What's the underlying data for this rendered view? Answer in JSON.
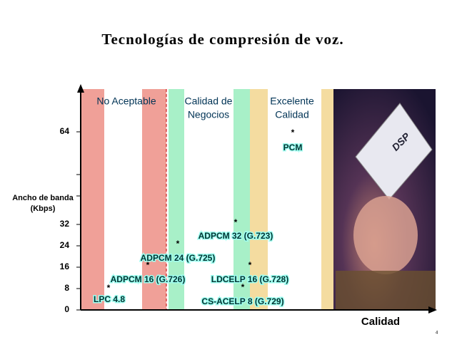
{
  "title": "Tecnologías  de compresión de voz.",
  "y_axis": {
    "label_lines": [
      "Ancho de banda",
      "(Kbps)"
    ],
    "ticks": [
      "64",
      "32",
      "24",
      "16",
      "8",
      "0"
    ]
  },
  "x_axis_label": "Calidad",
  "zones": [
    {
      "lines": [
        "No Aceptable"
      ]
    },
    {
      "lines": [
        "Calidad de",
        "Negocios"
      ]
    },
    {
      "lines": [
        "Excelente",
        "Calidad"
      ]
    }
  ],
  "points": [
    {
      "marker": "*",
      "label": "PCM"
    },
    {
      "marker": "*",
      "label": "ADPCM 32 (G.723)"
    },
    {
      "marker": "*",
      "label": "ADPCM 24 (G.725)"
    },
    {
      "marker": "*",
      "label": "ADPCM 16 (G.726)"
    },
    {
      "marker": "*",
      "label": "LDCELP 16 (G.728)"
    },
    {
      "marker": "*",
      "label": "CS-ACELP 8 (G.729)"
    },
    {
      "marker": "*",
      "label": "LPC 4.8"
    }
  ],
  "page_number": "4"
}
